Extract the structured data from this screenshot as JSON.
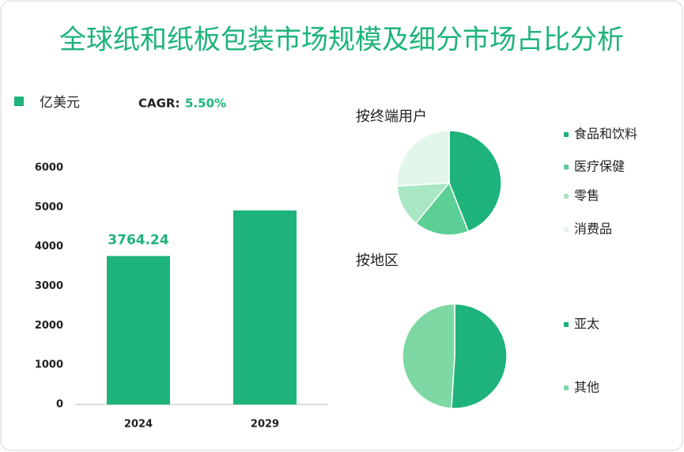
{
  "title": "全球纸和纸板包装市场规模及细分市场占比分析",
  "chart_data": [
    {
      "type": "bar",
      "categories": [
        "2024",
        "2029"
      ],
      "series": [
        {
          "name": "亿美元",
          "color": "#1db37a",
          "values": [
            3764.24,
            4920
          ],
          "value_labels": [
            "3764.24",
            null
          ]
        }
      ],
      "cagr_label": "CAGR:",
      "cagr": "5.50%",
      "ylim": [
        0,
        6000
      ],
      "yticks": [
        0,
        1000,
        2000,
        3000,
        4000,
        5000,
        6000
      ]
    },
    {
      "type": "pie",
      "title": "按终端用户",
      "categories": [
        "食品和饮料",
        "医疗保健",
        "零售",
        "消费品"
      ],
      "values": [
        44,
        17,
        13,
        26
      ],
      "colors": [
        "#1db37a",
        "#5ccf95",
        "#a8e6c4",
        "#e3f6ea"
      ]
    },
    {
      "type": "pie",
      "title": "按地区",
      "categories": [
        "亚太",
        "其他"
      ],
      "values": [
        51,
        49
      ],
      "colors": [
        "#1db37a",
        "#7dd8a3"
      ]
    }
  ]
}
